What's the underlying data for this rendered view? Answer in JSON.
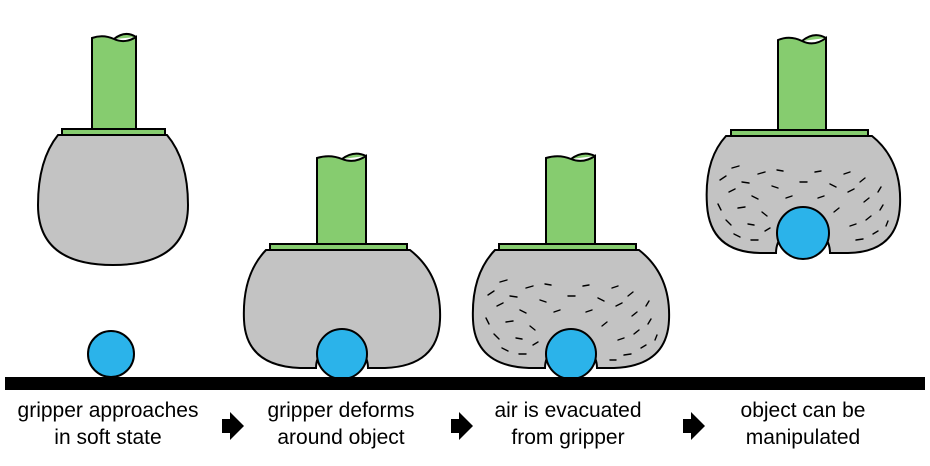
{
  "colors": {
    "stem_green": "#86cc6f",
    "pad_gray": "#c3c3c3",
    "object_blue": "#2bb3ea",
    "outline": "#000000",
    "ground": "#000000"
  },
  "steps": [
    {
      "line1": "gripper approaches",
      "line2": "in soft state"
    },
    {
      "line1": "gripper deforms",
      "line2": "around object"
    },
    {
      "line1": "air is evacuated",
      "line2": "from gripper"
    },
    {
      "line1": "object can be",
      "line2": "manipulated"
    }
  ],
  "arrow_icon": "right-block-arrow-icon"
}
